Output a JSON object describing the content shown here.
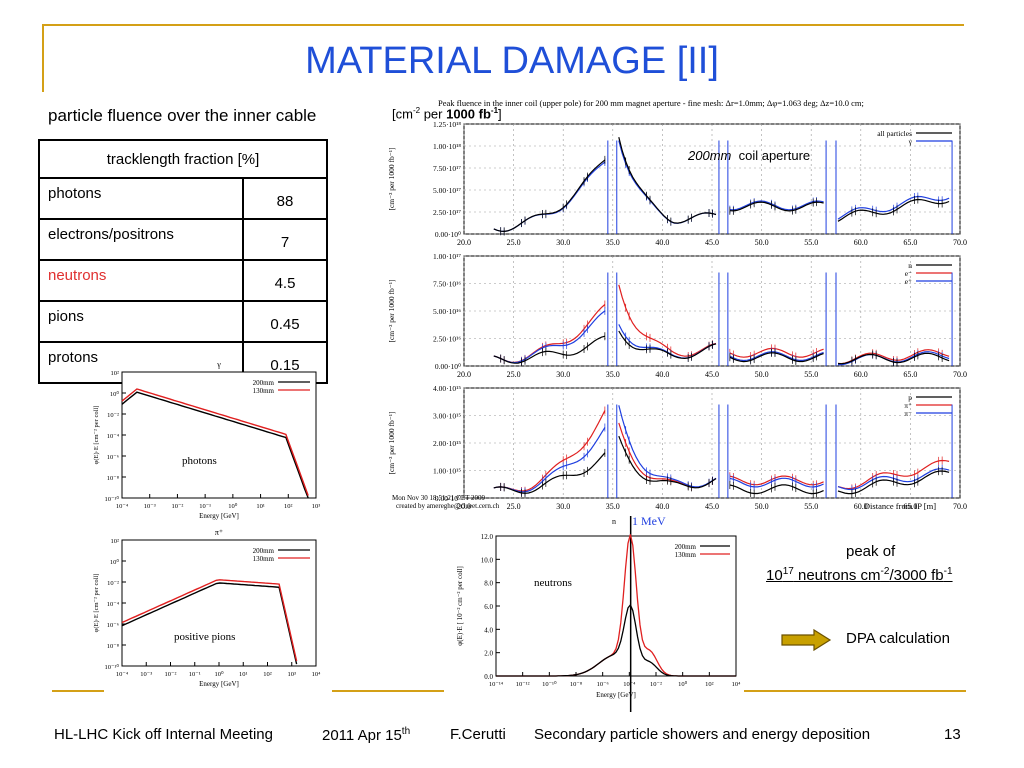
{
  "slide": {
    "title": "MATERIAL DAMAGE [II]",
    "subtitle": "particle fluence over the inner cable",
    "page_number": "13"
  },
  "table": {
    "header": "tracklength fraction [%]",
    "rows": [
      {
        "label": "photons",
        "value": "88"
      },
      {
        "label": "electrons/positrons",
        "value": "7"
      },
      {
        "label": "neutrons",
        "value": "4.5"
      },
      {
        "label": "pions",
        "value": "0.45"
      },
      {
        "label": "protons",
        "value": "0.15"
      }
    ],
    "highlight_color": "#e03030"
  },
  "fluence": {
    "unit_label_pre": "[cm",
    "unit_sup": "-2",
    "unit_label_mid": " per ",
    "unit_bold": "1000 fb",
    "unit_bold_sup": "-1",
    "unit_label_post": "]",
    "plot_title": "Peak fluence in the inner coil (upper pole) for 200 mm magnet aperture - fine mesh: Δr=1.0mm; Δφ=1.063 deg; Δz=10.0 cm;",
    "aperture_italic": "200mm",
    "aperture_text": "coil aperture",
    "timestamp": "Mon Nov 30 18:51:21 CET 2009",
    "created_by": "created by amereghe@clueet.cern.ch",
    "x_label": "Distance from IP [m]",
    "y_label": "[cm⁻² per 1000 fb⁻¹]",
    "x_ticks": [
      "20.0",
      "25.0",
      "30.0",
      "35.0",
      "40.0",
      "45.0",
      "50.0",
      "55.0",
      "60.0",
      "65.0",
      "70.0"
    ],
    "panel1_yticks": [
      "0.00·10⁰",
      "2.50·10¹⁷",
      "5.00·10¹⁷",
      "7.50·10¹⁷",
      "1.00·10¹⁸",
      "1.25·10¹⁸"
    ],
    "panel2_yticks": [
      "0.00·10⁰",
      "2.50·10¹⁶",
      "5.00·10¹⁶",
      "7.50·10¹⁶",
      "1.00·10¹⁷"
    ],
    "panel3_yticks": [
      "0.00·10⁰",
      "1.00·10¹⁵",
      "2.00·10¹⁵",
      "3.00·10¹⁵",
      "4.00·10¹⁵"
    ],
    "panel1_legend": [
      "all particles",
      "γ"
    ],
    "panel2_legend": [
      "n",
      "e⁻",
      "e⁺"
    ],
    "panel3_legend": [
      "p",
      "π⁺",
      "π⁻"
    ]
  },
  "spectra": {
    "photons": {
      "title": "γ",
      "label": "photons",
      "y_label": "φ(E)·E [cm⁻² per coll]",
      "x_label": "Energy [GeV]",
      "legend": [
        "200mm",
        "130mm"
      ],
      "y_ticks": [
        "10²",
        "10⁰",
        "10⁻²",
        "10⁻⁴",
        "10⁻⁶",
        "10⁻⁸",
        "10⁻¹⁰"
      ],
      "x_ticks": [
        "10⁻⁴",
        "10⁻³",
        "10⁻²",
        "10⁻¹",
        "10⁰",
        "10¹",
        "10²",
        "10³"
      ]
    },
    "pions": {
      "title": "π⁺",
      "label": "positive pions",
      "y_label": "φ(E)·E [cm⁻² per coll]",
      "x_label": "Energy [GeV]",
      "legend": [
        "200mm",
        "130mm"
      ],
      "y_ticks": [
        "10²",
        "10⁰",
        "10⁻²",
        "10⁻⁴",
        "10⁻⁶",
        "10⁻⁸",
        "10⁻¹⁰"
      ],
      "x_ticks": [
        "10⁻⁴",
        "10⁻³",
        "10⁻²",
        "10⁻¹",
        "10⁰",
        "10¹",
        "10²",
        "10³",
        "10⁴"
      ]
    },
    "neutrons": {
      "title": "n",
      "label": "neutrons",
      "marker": "1 MeV",
      "y_label": "φ(E)·E [ 10⁻² cm⁻² per coll]",
      "x_label": "Energy [GeV]",
      "legend": [
        "200mm",
        "130mm"
      ],
      "y_ticks": [
        "0.0",
        "2.0",
        "4.0",
        "6.0",
        "8.0",
        "10.0",
        "12.0"
      ],
      "x_ticks": [
        "10⁻¹⁴",
        "10⁻¹²",
        "10⁻¹⁰",
        "10⁻⁸",
        "10⁻⁶",
        "10⁻⁴",
        "10⁻²",
        "10⁰",
        "10²",
        "10⁴"
      ]
    }
  },
  "notes": {
    "peak_line1": "peak of",
    "peak_base": "10",
    "peak_exp": "17",
    "peak_mid": " neutrons cm",
    "peak_exp2": "-2",
    "peak_end": "/3000 fb",
    "peak_exp3": "-1",
    "dpa": "DPA calculation",
    "arrow_color": "#c8a000"
  },
  "footer": {
    "meeting": "HL-LHC Kick off Internal Meeting",
    "date_main": "2011 Apr 15",
    "date_sup": "th",
    "author": "F.Cerutti",
    "topic": "Secondary particle showers and energy deposition"
  },
  "colors": {
    "black_series": "#000000",
    "red_series": "#e02020",
    "blue_series": "#1f3fe0",
    "title": "#1f4fd8",
    "frame": "#d4a017"
  }
}
